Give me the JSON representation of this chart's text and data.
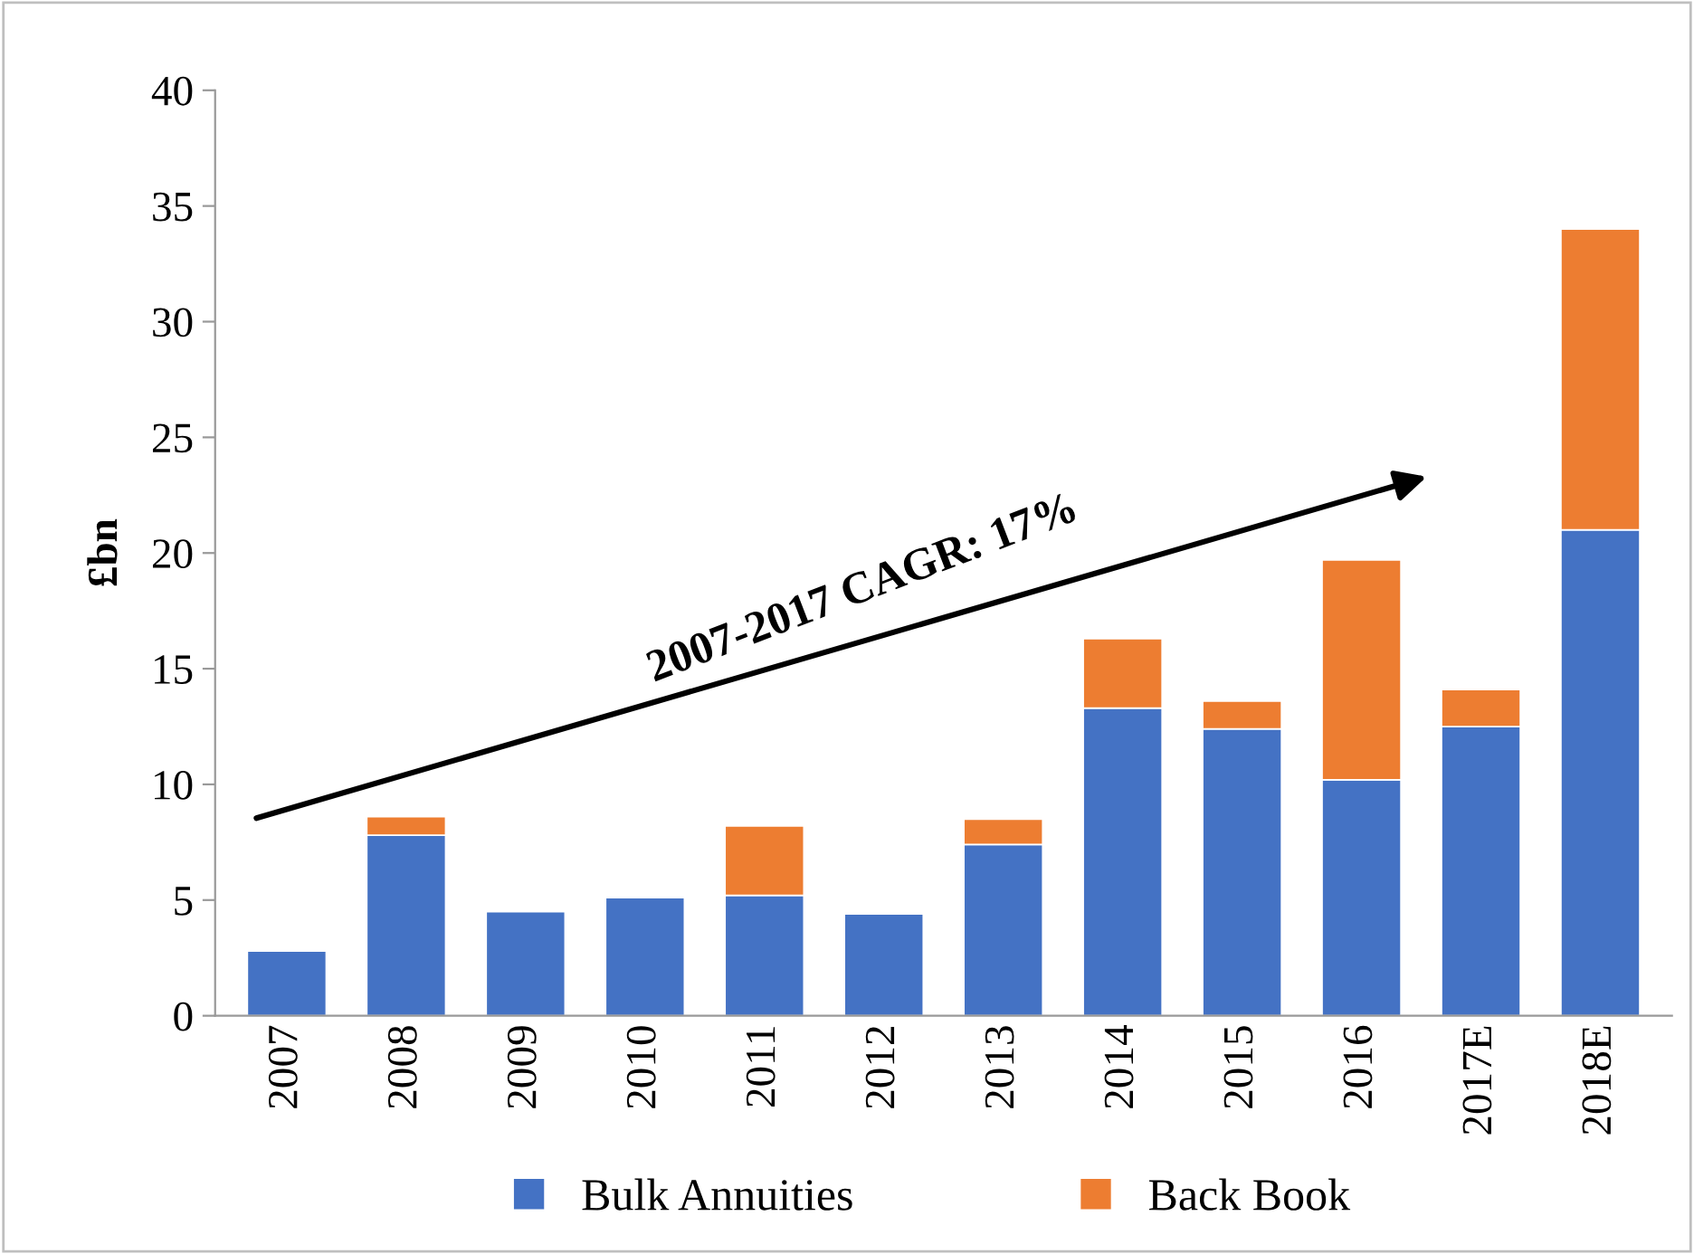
{
  "chart_data": {
    "type": "bar",
    "stacked": true,
    "categories": [
      "2007",
      "2008",
      "2009",
      "2010",
      "2011",
      "2012",
      "2013",
      "2014",
      "2015",
      "2016",
      "2017E",
      "2018E"
    ],
    "series": [
      {
        "name": "Bulk Annuities",
        "color": "#4472c4",
        "values": [
          2.8,
          7.8,
          4.5,
          5.1,
          5.2,
          4.4,
          7.4,
          13.3,
          12.4,
          10.2,
          12.5,
          21.0
        ]
      },
      {
        "name": "Back Book",
        "color": "#ed7d31",
        "values": [
          null,
          0.8,
          null,
          null,
          3.0,
          null,
          1.1,
          3.0,
          1.2,
          9.5,
          1.6,
          13.0
        ]
      }
    ],
    "ylabel": "£bn",
    "ylim": [
      0,
      40
    ],
    "yticks": [
      0,
      5,
      10,
      15,
      20,
      25,
      30,
      35,
      40
    ],
    "annotations": [
      "2007-2017 CAGR: 17%"
    ],
    "legend": "bottom",
    "grid": false
  }
}
